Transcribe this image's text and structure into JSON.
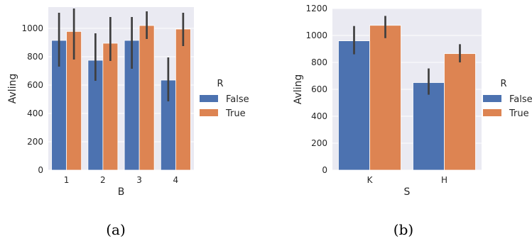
{
  "colors": {
    "plot_bg": "#eaeaf2",
    "grid": "#ffffff",
    "errorbar": "#3f3f3f",
    "False": "#4c72b0",
    "True": "#dd8452"
  },
  "chart_data": [
    {
      "type": "bar",
      "caption": "(a)",
      "xlabel": "B",
      "ylabel": "Avling",
      "categories": [
        "1",
        "2",
        "3",
        "4"
      ],
      "ylim": [
        0,
        1150
      ],
      "yticks": [
        0,
        200,
        400,
        600,
        800,
        1000
      ],
      "grid": true,
      "legend": {
        "title": "R",
        "position": "center-right",
        "entries": [
          "False",
          "True"
        ]
      },
      "series": [
        {
          "name": "False",
          "values": [
            915,
            775,
            915,
            635
          ],
          "ci_low": [
            730,
            630,
            715,
            485
          ],
          "ci_high": [
            1110,
            965,
            1080,
            795
          ]
        },
        {
          "name": "True",
          "values": [
            978,
            895,
            1020,
            995
          ],
          "ci_low": [
            780,
            770,
            925,
            875
          ],
          "ci_high": [
            1140,
            1080,
            1120,
            1110
          ]
        }
      ]
    },
    {
      "type": "bar",
      "caption": "(b)",
      "xlabel": "S",
      "ylabel": "Avling",
      "categories": [
        "K",
        "H"
      ],
      "ylim": [
        0,
        1200
      ],
      "yticks": [
        0,
        200,
        400,
        600,
        800,
        1000,
        1200
      ],
      "grid": true,
      "legend": {
        "title": "R",
        "position": "center-right",
        "entries": [
          "False",
          "True"
        ]
      },
      "series": [
        {
          "name": "False",
          "values": [
            960,
            650
          ],
          "ci_low": [
            860,
            560
          ],
          "ci_high": [
            1070,
            755
          ]
        },
        {
          "name": "True",
          "values": [
            1075,
            865
          ],
          "ci_low": [
            980,
            800
          ],
          "ci_high": [
            1145,
            935
          ]
        }
      ]
    }
  ]
}
